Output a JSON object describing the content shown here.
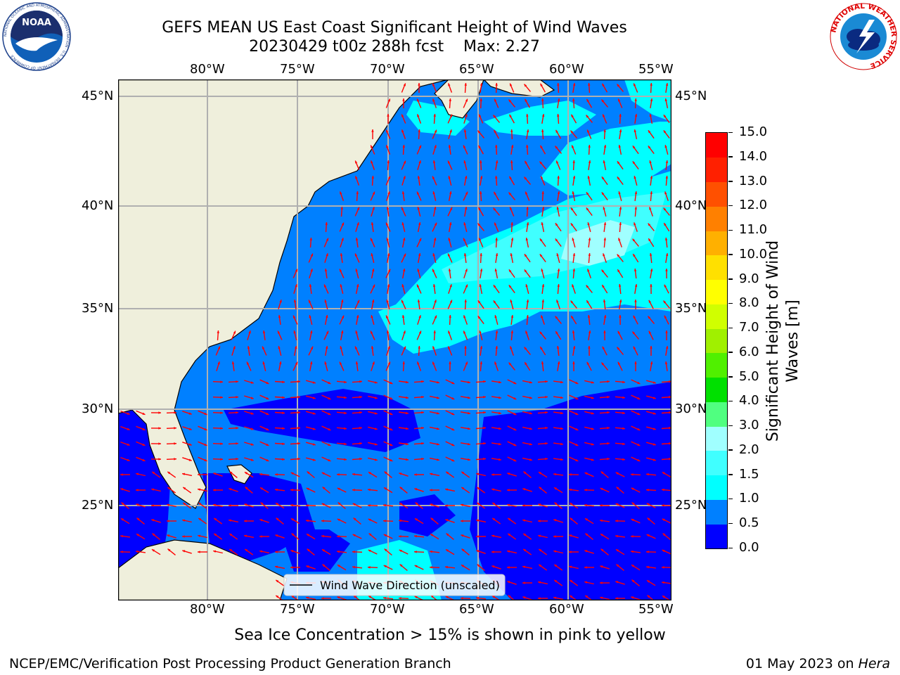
{
  "header": {
    "title_line1": "GEFS MEAN US East Coast Significant Height of Wind Waves",
    "title_line2": "20230429 t00z 288h fcst    Max: 2.27"
  },
  "logos": {
    "left": {
      "icon": "noaa-logo",
      "text": "NOAA",
      "ring_text": "NATIONAL OCEANIC AND ATMOSPHERIC ADMINISTRATION · U.S. DEPARTMENT OF COMMERCE"
    },
    "right": {
      "icon": "nws-logo",
      "ring_text": "NATIONAL WEATHER SERVICE"
    }
  },
  "map": {
    "lon_labels": [
      "80°W",
      "75°W",
      "70°W",
      "65°W",
      "60°W",
      "55°W"
    ],
    "lat_labels": [
      "45°N",
      "40°N",
      "35°N",
      "30°N",
      "25°N"
    ],
    "legend_label": "Wind Wave Direction (unscaled)",
    "colors": {
      "land": "#efefdc",
      "coast": "#000000",
      "grid": "#b0b0b0",
      "arrow": "#ff0000"
    }
  },
  "colorbar": {
    "label_line1": "Significant Height of Wind",
    "label_line2": "Waves [m]",
    "ticks": [
      "0.0",
      "0.5",
      "1.0",
      "1.5",
      "2.0",
      "3.0",
      "4.0",
      "5.0",
      "6.0",
      "7.0",
      "8.0",
      "9.0",
      "10.0",
      "11.0",
      "12.0",
      "13.0",
      "14.0",
      "15.0"
    ],
    "colors": [
      "#0000ff",
      "#0080ff",
      "#00ffff",
      "#40ffff",
      "#a0ffff",
      "#50ff80",
      "#00e000",
      "#50f000",
      "#a0f000",
      "#d0ff00",
      "#ffff00",
      "#ffe000",
      "#ffb000",
      "#ff8000",
      "#ff5000",
      "#ff2000",
      "#ff0000"
    ]
  },
  "footer": {
    "ice_note": "Sea Ice Concentration > 15% is shown in pink to yellow",
    "left": "NCEP/EMC/Verification Post Processing Product Generation Branch",
    "right_date": "01 May 2023 on",
    "right_host": "Hera"
  }
}
